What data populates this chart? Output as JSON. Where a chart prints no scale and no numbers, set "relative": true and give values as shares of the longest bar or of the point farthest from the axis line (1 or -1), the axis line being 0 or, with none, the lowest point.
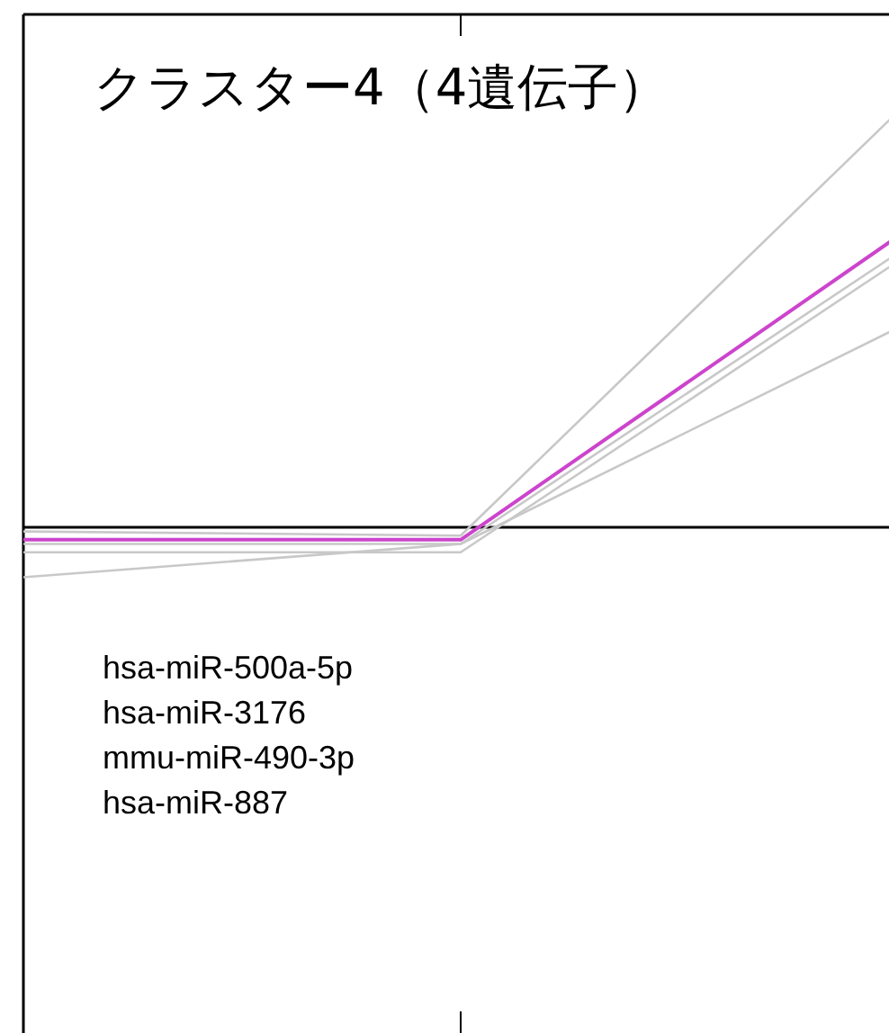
{
  "chart_data": {
    "type": "line",
    "title": "クラスター4（4遺伝子）",
    "relative": true,
    "categories": [
      null,
      null,
      null
    ],
    "series": [
      {
        "color": "#c8c8c8",
        "values": [
          -0.01,
          -0.02,
          1
        ]
      },
      {
        "color": "#c8c8c8",
        "values": [
          -0.04,
          -0.04,
          0.66
        ]
      },
      {
        "color": "#c8c8c8",
        "values": [
          -0.06,
          -0.06,
          0.64
        ]
      },
      {
        "color": "#c8c8c8",
        "values": [
          -0.12,
          -0.04,
          0.48
        ]
      },
      {
        "color": "#cc44cc",
        "values": [
          -0.03,
          -0.03,
          0.7
        ]
      }
    ],
    "annotations": [
      "hsa-miR-500a-5p",
      "hsa-miR-3176",
      "mmu-miR-490-3p",
      "hsa-miR-887"
    ],
    "marker": "none",
    "line_style": "solid"
  }
}
